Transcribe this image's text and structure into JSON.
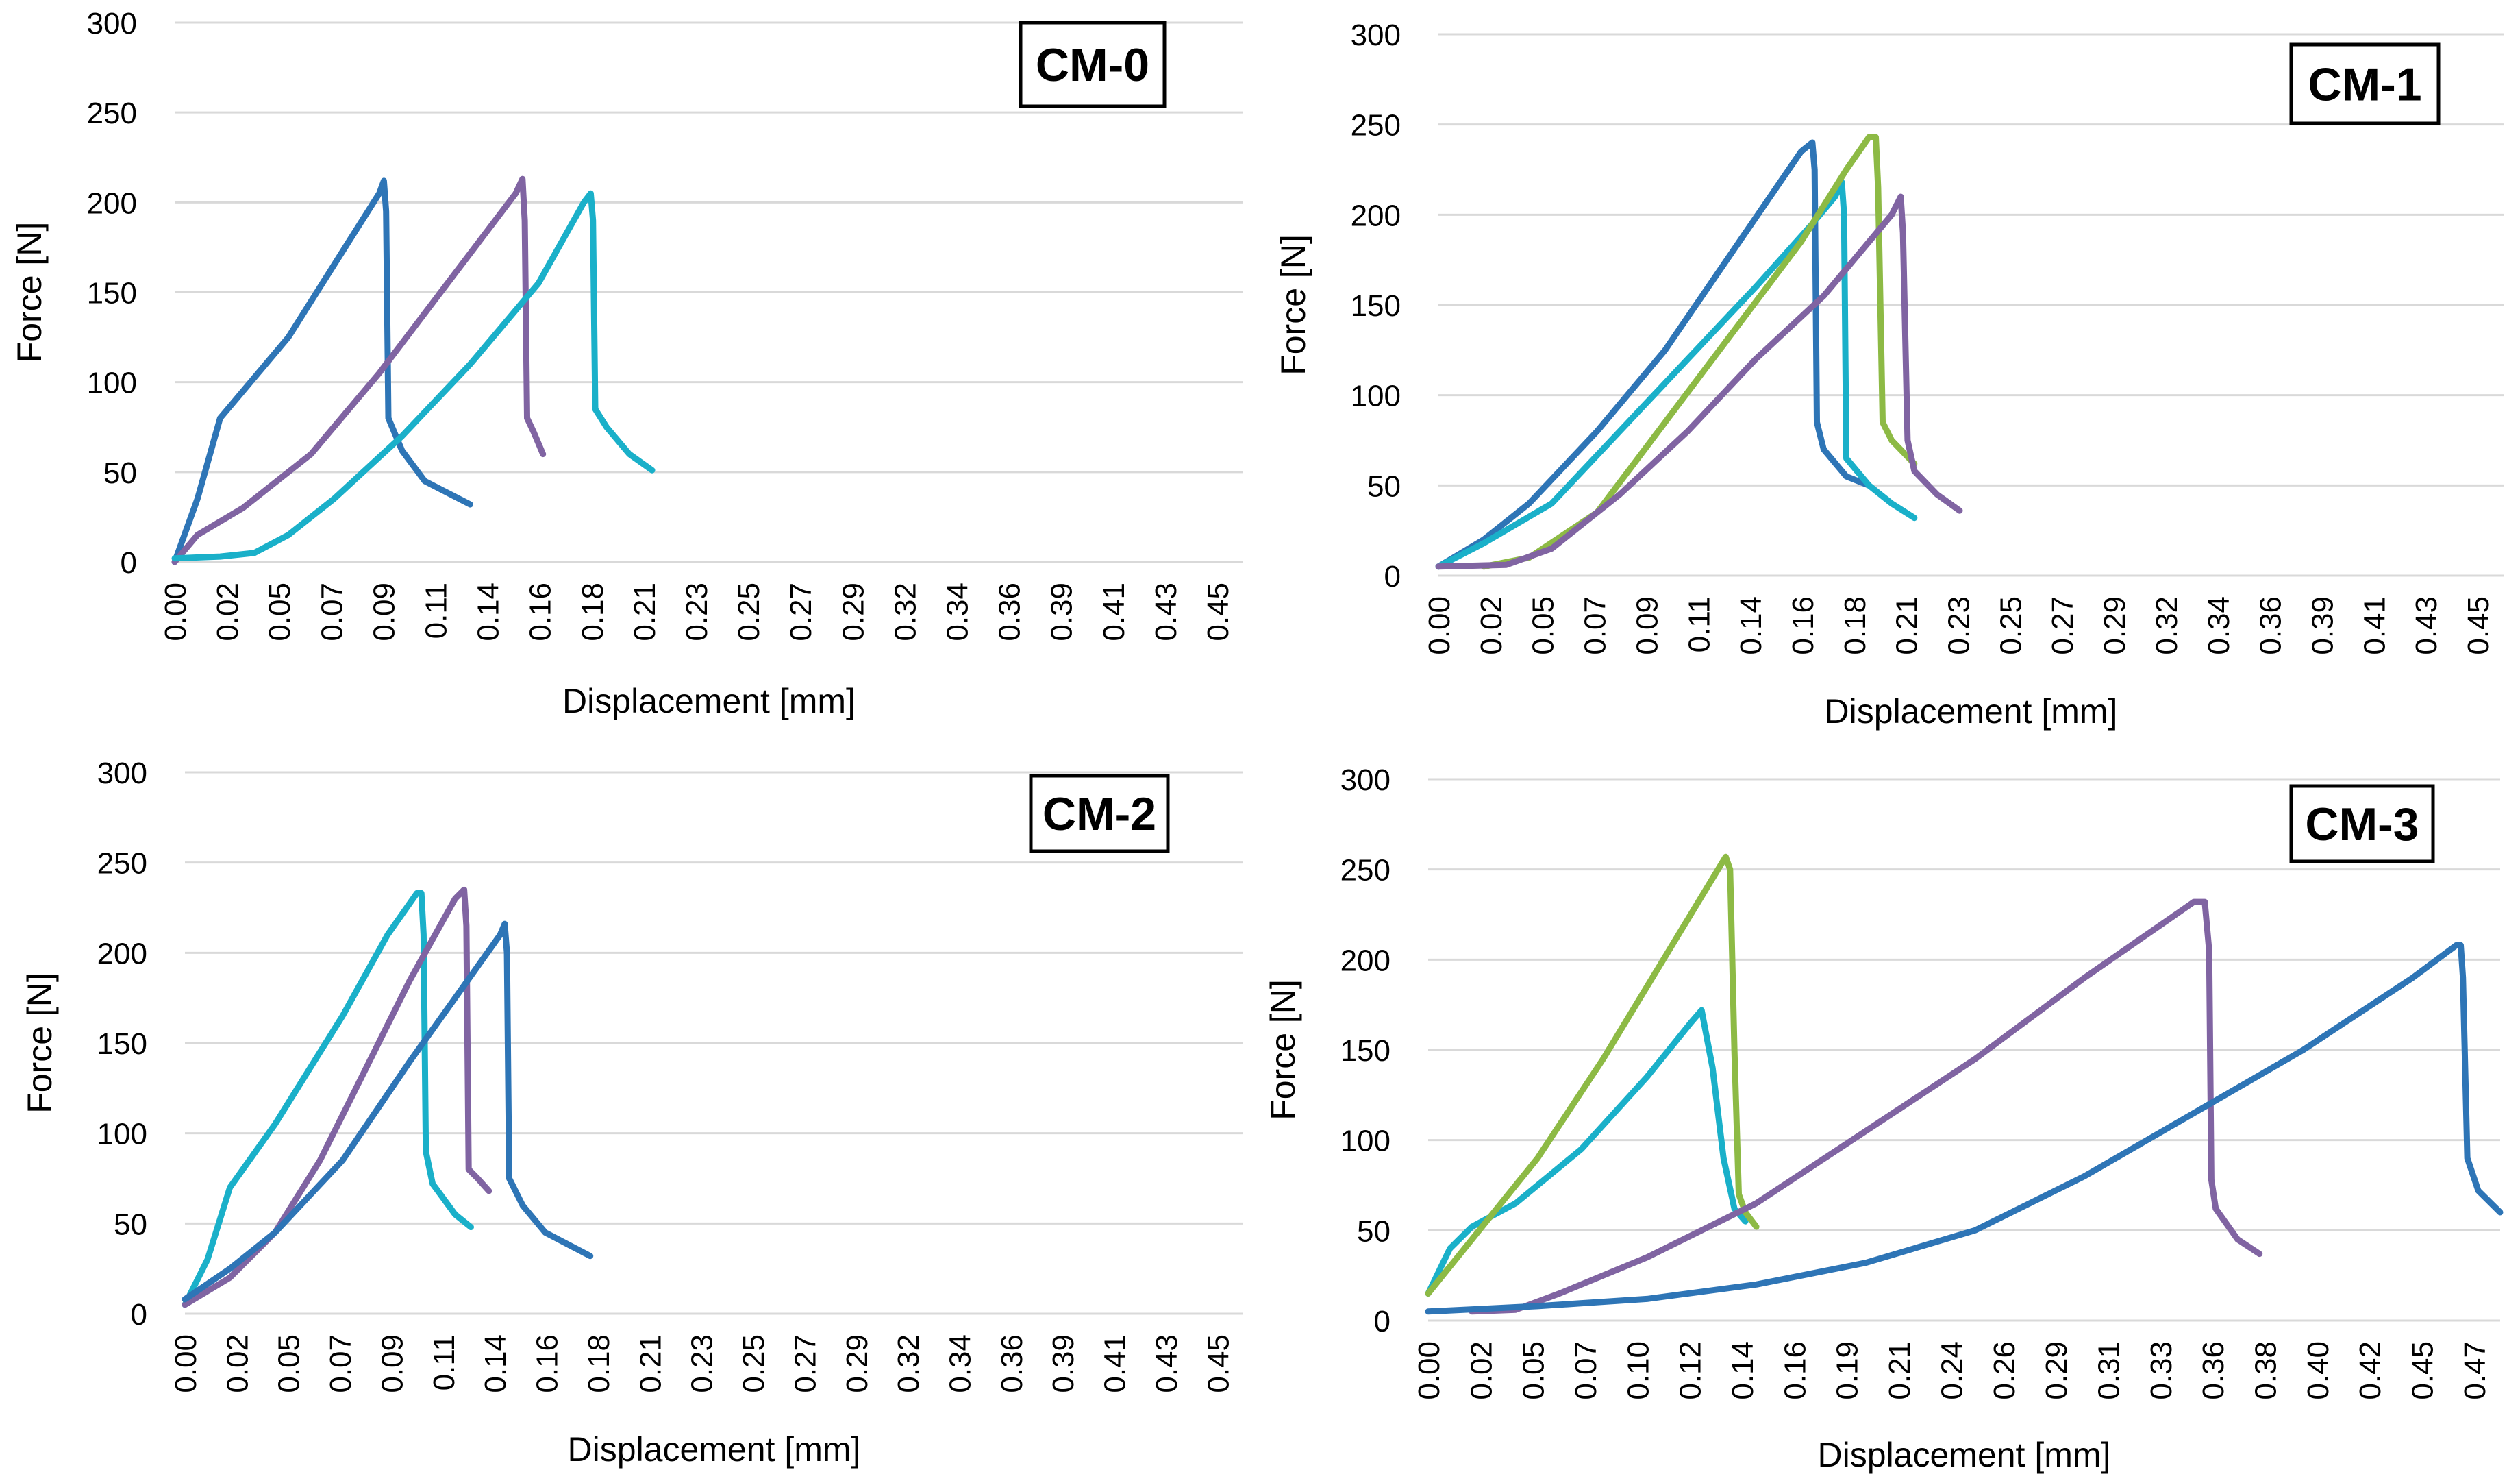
{
  "colors": {
    "blue": "#2E75B6",
    "purple": "#8064A2",
    "cyan": "#1AB0C9",
    "green": "#8DBA45",
    "grid": "#D9D9D9"
  },
  "chart_data": [
    {
      "type": "line",
      "title": "CM-0",
      "xlabel": "Displacement [mm]",
      "ylabel": "Force [N]",
      "xlim": [
        0,
        0.47
      ],
      "ylim": [
        0,
        300
      ],
      "yticks": [
        "0",
        "50",
        "100",
        "150",
        "200",
        "250",
        "300"
      ],
      "xticks": [
        "0.00",
        "0.02",
        "0.05",
        "0.07",
        "0.09",
        "0.11",
        "0.14",
        "0.16",
        "0.18",
        "0.21",
        "0.23",
        "0.25",
        "0.27",
        "0.29",
        "0.32",
        "0.34",
        "0.36",
        "0.39",
        "0.41",
        "0.43",
        "0.45"
      ],
      "series": [
        {
          "name": "blue",
          "color": "blue",
          "x": [
            0,
            0.01,
            0.02,
            0.03,
            0.05,
            0.07,
            0.09,
            0.092,
            0.093,
            0.094,
            0.1,
            0.11,
            0.13
          ],
          "y": [
            0,
            35,
            80,
            95,
            125,
            165,
            205,
            212,
            195,
            80,
            62,
            45,
            32
          ]
        },
        {
          "name": "purple",
          "color": "purple",
          "x": [
            0,
            0.01,
            0.03,
            0.06,
            0.09,
            0.12,
            0.15,
            0.153,
            0.154,
            0.155,
            0.158,
            0.162
          ],
          "y": [
            0,
            15,
            30,
            60,
            105,
            155,
            205,
            213,
            190,
            80,
            72,
            60
          ]
        },
        {
          "name": "cyan",
          "color": "cyan",
          "x": [
            0,
            0.02,
            0.035,
            0.05,
            0.07,
            0.1,
            0.13,
            0.16,
            0.18,
            0.183,
            0.184,
            0.185,
            0.19,
            0.2,
            0.21
          ],
          "y": [
            2,
            3,
            5,
            15,
            35,
            70,
            110,
            155,
            200,
            205,
            190,
            85,
            75,
            60,
            51
          ]
        }
      ]
    },
    {
      "type": "line",
      "title": "CM-1",
      "xlabel": "Displacement [mm]",
      "ylabel": "Force [N]",
      "xlim": [
        0,
        0.47
      ],
      "ylim": [
        0,
        300
      ],
      "yticks": [
        "0",
        "50",
        "100",
        "150",
        "200",
        "250",
        "300"
      ],
      "xticks": [
        "0.00",
        "0.02",
        "0.05",
        "0.07",
        "0.09",
        "0.11",
        "0.14",
        "0.16",
        "0.18",
        "0.21",
        "0.23",
        "0.25",
        "0.27",
        "0.29",
        "0.32",
        "0.34",
        "0.36",
        "0.39",
        "0.41",
        "0.43",
        "0.45"
      ],
      "series": [
        {
          "name": "blue",
          "color": "blue",
          "x": [
            0,
            0.02,
            0.04,
            0.07,
            0.1,
            0.13,
            0.16,
            0.165,
            0.166,
            0.167,
            0.17,
            0.18,
            0.19
          ],
          "y": [
            5,
            20,
            40,
            80,
            125,
            180,
            235,
            240,
            225,
            85,
            70,
            55,
            50
          ]
        },
        {
          "name": "cyan",
          "color": "cyan",
          "x": [
            0,
            0.02,
            0.05,
            0.08,
            0.11,
            0.14,
            0.165,
            0.175,
            0.178,
            0.179,
            0.18,
            0.19,
            0.2,
            0.21
          ],
          "y": [
            5,
            18,
            40,
            80,
            120,
            160,
            195,
            210,
            218,
            200,
            65,
            50,
            40,
            32
          ]
        },
        {
          "name": "green",
          "color": "green",
          "x": [
            0.02,
            0.04,
            0.07,
            0.1,
            0.13,
            0.16,
            0.18,
            0.19,
            0.193,
            0.194,
            0.196,
            0.2,
            0.21
          ],
          "y": [
            5,
            10,
            35,
            85,
            135,
            185,
            225,
            243,
            243,
            215,
            85,
            75,
            62
          ]
        },
        {
          "name": "purple",
          "color": "purple",
          "x": [
            0,
            0.03,
            0.05,
            0.08,
            0.11,
            0.14,
            0.17,
            0.2,
            0.204,
            0.205,
            0.207,
            0.21,
            0.22,
            0.23
          ],
          "y": [
            5,
            6,
            15,
            45,
            80,
            120,
            155,
            200,
            210,
            190,
            75,
            58,
            45,
            36
          ]
        }
      ]
    },
    {
      "type": "line",
      "title": "CM-2",
      "xlabel": "Displacement [mm]",
      "ylabel": "Force [N]",
      "xlim": [
        0,
        0.47
      ],
      "ylim": [
        0,
        300
      ],
      "yticks": [
        "0",
        "50",
        "100",
        "150",
        "200",
        "250",
        "300"
      ],
      "xticks": [
        "0.00",
        "0.02",
        "0.05",
        "0.07",
        "0.09",
        "0.11",
        "0.14",
        "0.16",
        "0.18",
        "0.21",
        "0.23",
        "0.25",
        "0.27",
        "0.29",
        "0.32",
        "0.34",
        "0.36",
        "0.39",
        "0.41",
        "0.43",
        "0.45"
      ],
      "series": [
        {
          "name": "cyan",
          "color": "cyan",
          "x": [
            0,
            0.01,
            0.02,
            0.04,
            0.07,
            0.09,
            0.103,
            0.105,
            0.106,
            0.107,
            0.11,
            0.12,
            0.127
          ],
          "y": [
            5,
            30,
            70,
            105,
            165,
            210,
            233,
            233,
            210,
            90,
            72,
            55,
            48
          ]
        },
        {
          "name": "purple",
          "color": "purple",
          "x": [
            0,
            0.02,
            0.04,
            0.06,
            0.08,
            0.1,
            0.12,
            0.124,
            0.125,
            0.126,
            0.13,
            0.135
          ],
          "y": [
            5,
            20,
            45,
            85,
            135,
            185,
            230,
            235,
            215,
            80,
            75,
            68
          ]
        },
        {
          "name": "blue",
          "color": "blue",
          "x": [
            0,
            0.02,
            0.04,
            0.07,
            0.1,
            0.12,
            0.14,
            0.142,
            0.143,
            0.144,
            0.15,
            0.16,
            0.18
          ],
          "y": [
            8,
            25,
            45,
            85,
            140,
            175,
            210,
            216,
            200,
            75,
            60,
            45,
            32
          ]
        }
      ]
    },
    {
      "type": "line",
      "title": "CM-3",
      "xlabel": "Displacement [mm]",
      "ylabel": "Force [N]",
      "xlim": [
        0,
        0.49
      ],
      "ylim": [
        0,
        300
      ],
      "yticks": [
        "0",
        "50",
        "100",
        "150",
        "200",
        "250",
        "300"
      ],
      "xticks": [
        "0.00",
        "0.02",
        "0.05",
        "0.07",
        "0.10",
        "0.12",
        "0.14",
        "0.16",
        "0.19",
        "0.21",
        "0.24",
        "0.26",
        "0.29",
        "0.31",
        "0.33",
        "0.36",
        "0.38",
        "0.40",
        "0.42",
        "0.45",
        "0.47"
      ],
      "series": [
        {
          "name": "cyan",
          "color": "cyan",
          "x": [
            0,
            0.01,
            0.02,
            0.04,
            0.07,
            0.1,
            0.12,
            0.125,
            0.13,
            0.135,
            0.14,
            0.145
          ],
          "y": [
            15,
            40,
            52,
            65,
            95,
            135,
            165,
            172,
            140,
            90,
            62,
            55
          ]
        },
        {
          "name": "green",
          "color": "green",
          "x": [
            0,
            0.02,
            0.05,
            0.08,
            0.11,
            0.13,
            0.136,
            0.138,
            0.14,
            0.142,
            0.145,
            0.15
          ],
          "y": [
            15,
            45,
            90,
            145,
            205,
            245,
            257,
            250,
            150,
            70,
            60,
            52
          ]
        },
        {
          "name": "purple",
          "color": "purple",
          "x": [
            0.02,
            0.04,
            0.06,
            0.1,
            0.15,
            0.2,
            0.25,
            0.3,
            0.35,
            0.355,
            0.357,
            0.358,
            0.36,
            0.37,
            0.38
          ],
          "y": [
            5,
            6,
            15,
            35,
            65,
            105,
            145,
            190,
            232,
            232,
            205,
            78,
            62,
            45,
            37
          ]
        },
        {
          "name": "blue",
          "color": "blue",
          "x": [
            0,
            0.05,
            0.1,
            0.15,
            0.2,
            0.25,
            0.3,
            0.35,
            0.4,
            0.45,
            0.47,
            0.472,
            0.473,
            0.475,
            0.48,
            0.49
          ],
          "y": [
            5,
            8,
            12,
            20,
            32,
            50,
            80,
            115,
            150,
            190,
            208,
            208,
            190,
            90,
            72,
            60
          ]
        }
      ]
    }
  ]
}
